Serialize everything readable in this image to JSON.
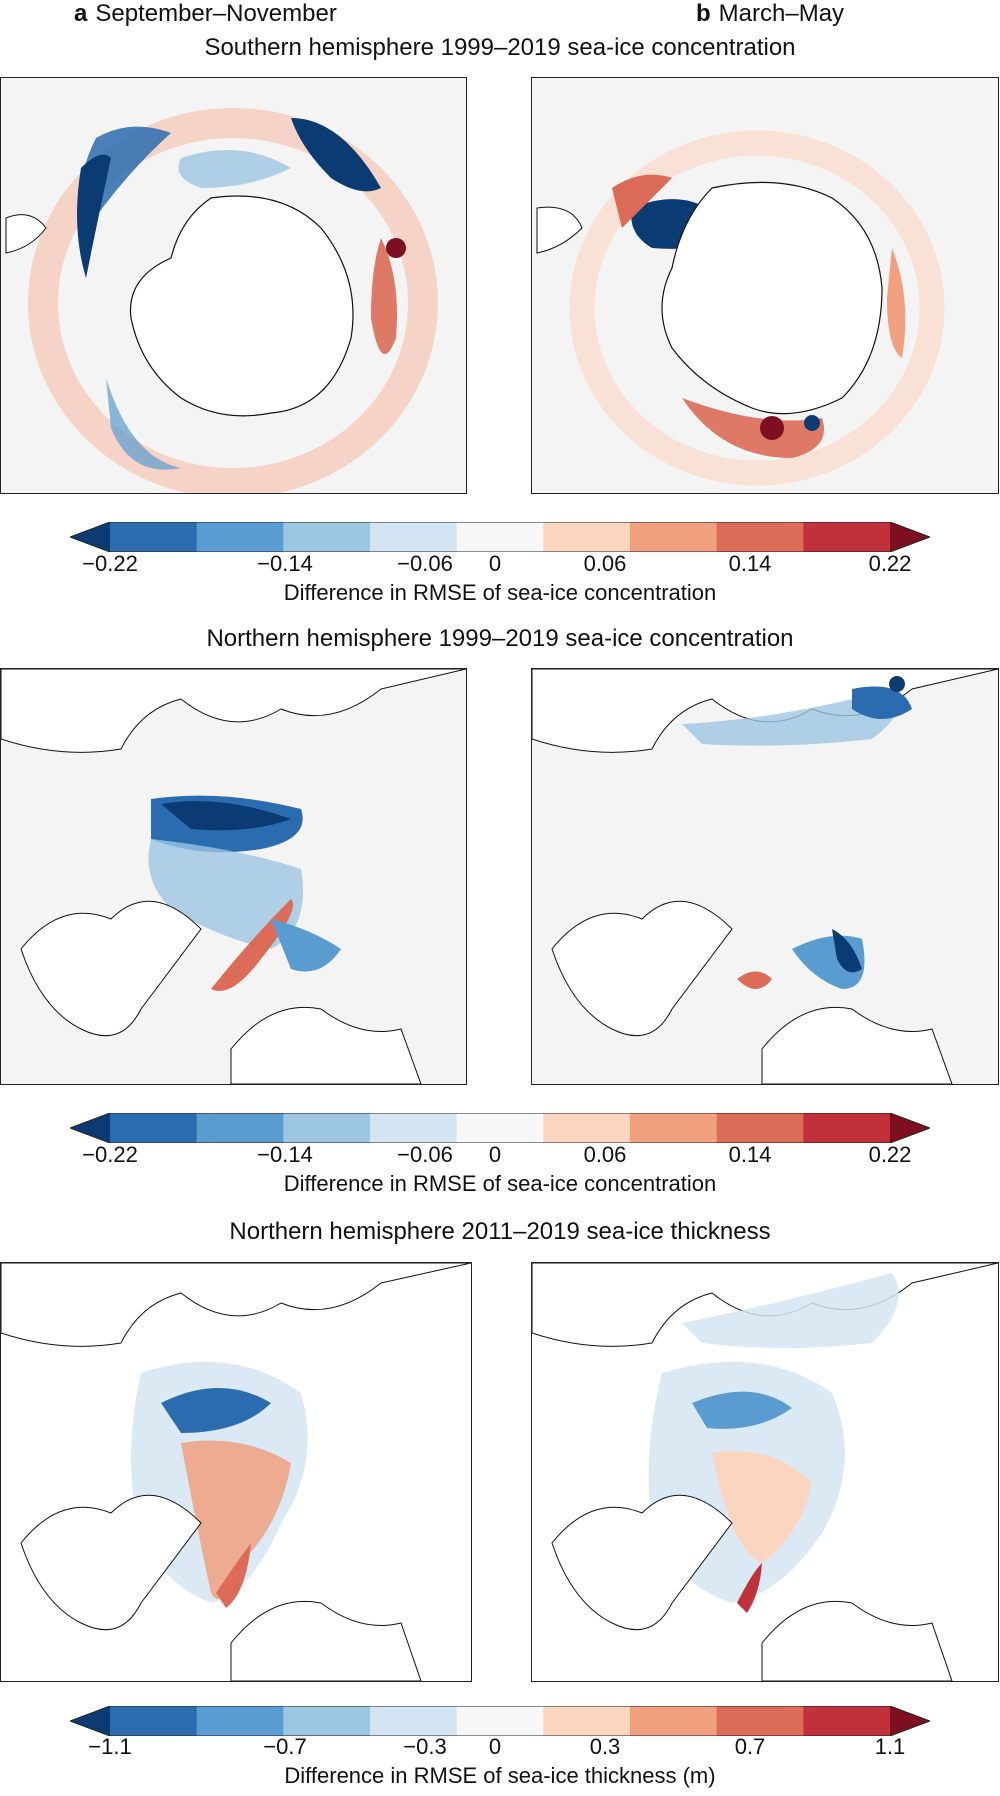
{
  "panel_a": {
    "letter": "a",
    "season": "September–November"
  },
  "panel_b": {
    "letter": "b",
    "season": "March–May"
  },
  "sections": [
    {
      "title": "Southern hemisphere 1999–2019 sea-ice concentration",
      "colorbar_label": "Difference in RMSE of sea-ice concentration",
      "ticks": [
        "−0.22",
        "−0.14",
        "−0.06",
        "0",
        "0.06",
        "0.14",
        "0.22"
      ]
    },
    {
      "title": "Northern hemisphere 1999–2019 sea-ice concentration",
      "colorbar_label": "Difference in RMSE of sea-ice concentration",
      "ticks": [
        "−0.22",
        "−0.14",
        "−0.06",
        "0",
        "0.06",
        "0.14",
        "0.22"
      ]
    },
    {
      "title": "Northern hemisphere 2011–2019 sea-ice thickness",
      "colorbar_label": "Difference in RMSE of sea-ice thickness (m)",
      "ticks": [
        "−1.1",
        "−0.7",
        "−0.3",
        "0",
        "0.3",
        "0.7",
        "1.1"
      ]
    }
  ],
  "colormap": [
    "#0b3b73",
    "#2b6cb0",
    "#5a9bd0",
    "#9cc6e2",
    "#d3e5f2",
    "#f7f7f7",
    "#fbd5c0",
    "#f0a07f",
    "#dc6c57",
    "#c0313a",
    "#7e0f21"
  ]
}
